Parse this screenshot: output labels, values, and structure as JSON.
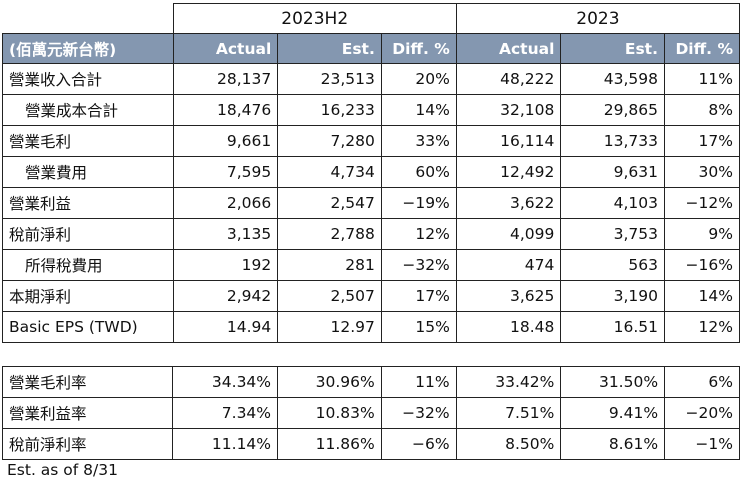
{
  "header": {
    "period_1": "2023H2",
    "period_2": "2023",
    "unit_label": "(佰萬元新台幣)",
    "columns": [
      "Actual",
      "Est.",
      "Diff. %",
      "Actual",
      "Est.",
      "Diff. %"
    ]
  },
  "rows": [
    {
      "label": "營業收入合計",
      "indent": false,
      "values": [
        "28,137",
        "23,513",
        "20%",
        "48,222",
        "43,598",
        "11%"
      ]
    },
    {
      "label": "營業成本合計",
      "indent": true,
      "values": [
        "18,476",
        "16,233",
        "14%",
        "32,108",
        "29,865",
        "8%"
      ]
    },
    {
      "label": "營業毛利",
      "indent": false,
      "values": [
        "9,661",
        "7,280",
        "33%",
        "16,114",
        "13,733",
        "17%"
      ]
    },
    {
      "label": "營業費用",
      "indent": true,
      "values": [
        "7,595",
        "4,734",
        "60%",
        "12,492",
        "9,631",
        "30%"
      ]
    },
    {
      "label": "營業利益",
      "indent": false,
      "values": [
        "2,066",
        "2,547",
        "−19%",
        "3,622",
        "4,103",
        "−12%"
      ]
    },
    {
      "label": "稅前淨利",
      "indent": false,
      "values": [
        "3,135",
        "2,788",
        "12%",
        "4,099",
        "3,753",
        "9%"
      ]
    },
    {
      "label": "所得稅費用",
      "indent": true,
      "values": [
        "192",
        "281",
        "−32%",
        "474",
        "563",
        "−16%"
      ]
    },
    {
      "label": "本期淨利",
      "indent": false,
      "values": [
        "2,942",
        "2,507",
        "17%",
        "3,625",
        "3,190",
        "14%"
      ]
    },
    {
      "label": "Basic EPS (TWD)",
      "indent": false,
      "values": [
        "14.94",
        "12.97",
        "15%",
        "18.48",
        "16.51",
        "12%"
      ]
    }
  ],
  "ratios": [
    {
      "label": "營業毛利率",
      "values": [
        "34.34%",
        "30.96%",
        "11%",
        "33.42%",
        "31.50%",
        "6%"
      ]
    },
    {
      "label": "營業利益率",
      "values": [
        "7.34%",
        "10.83%",
        "−32%",
        "7.51%",
        "9.41%",
        "−20%"
      ]
    },
    {
      "label": "稅前淨利率",
      "values": [
        "11.14%",
        "11.86%",
        "−6%",
        "8.50%",
        "8.61%",
        "−1%"
      ]
    }
  ],
  "footnote": "Est. as of 8/31",
  "colors": {
    "header_bg": "#8497b0",
    "header_text": "#ffffff",
    "border": "#222222"
  }
}
